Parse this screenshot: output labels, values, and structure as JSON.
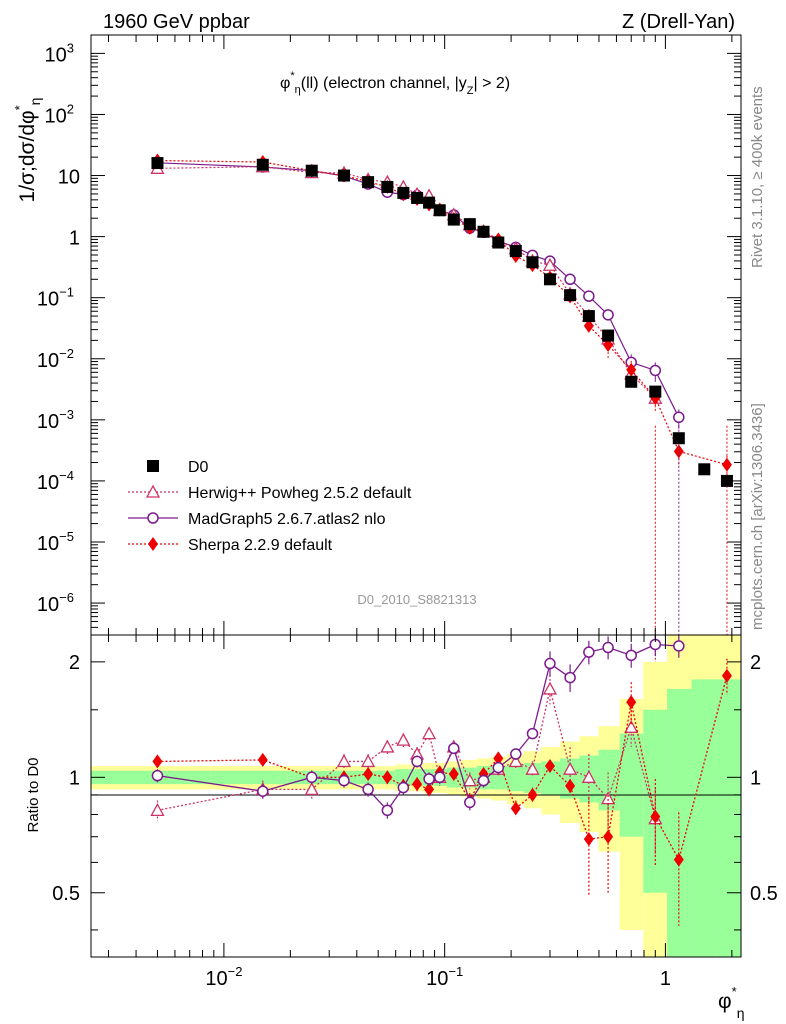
{
  "header": {
    "left": "1960 GeV ppbar",
    "right": "Z (Drell-Yan)",
    "side_top": "Rivet 3.1.10, ≥ 400k events",
    "side_bottom": "mcplots.cern.ch [arXiv:1306.3436]"
  },
  "chart_data": {
    "type": "scatter",
    "title": "φ*η(ll) (electron channel, |yZ| > 2)",
    "title_parts": {
      "phi": "φ",
      "star": "*",
      "eta": "η",
      "rest1": "(ll) (electron channel, |y",
      "sub_z": "Z",
      "rest2": "| > 2)"
    },
    "watermark": "D0_2010_S8821313",
    "xlabel": {
      "phi": "φ",
      "star": "*",
      "eta": "η"
    },
    "ylabel": {
      "main": "1/σ;dσ/dφ",
      "star": "*",
      "eta": "η"
    },
    "ratio_ylabel": "Ratio to D0",
    "xscale": "log",
    "xlim": [
      0.0025,
      2.2
    ],
    "ylim_main": [
      3e-07,
      2000
    ],
    "ylim_ratio": [
      0.34,
      2.35
    ],
    "x_ticks": [
      {
        "base": "10",
        "exp": "−2",
        "value": 0.01
      },
      {
        "base": "10",
        "exp": "−1",
        "value": 0.1
      },
      {
        "base": "1",
        "exp": "",
        "value": 1
      }
    ],
    "y_ticks": [
      {
        "base": "10",
        "exp": "3",
        "value": 1000
      },
      {
        "base": "10",
        "exp": "2",
        "value": 100
      },
      {
        "base": "10",
        "exp": "",
        "value": 10
      },
      {
        "base": "1",
        "exp": "",
        "value": 1
      },
      {
        "base": "10",
        "exp": "−1",
        "value": 0.1
      },
      {
        "base": "10",
        "exp": "−2",
        "value": 0.01
      },
      {
        "base": "10",
        "exp": "−3",
        "value": 0.001
      },
      {
        "base": "10",
        "exp": "−4",
        "value": 0.0001
      },
      {
        "base": "10",
        "exp": "−5",
        "value": 1e-05
      },
      {
        "base": "10",
        "exp": "−6",
        "value": 1e-06
      }
    ],
    "ratio_ticks": [
      {
        "label": "2",
        "value": 2
      },
      {
        "label": "1",
        "value": 1
      },
      {
        "label": "0.5",
        "value": 0.5
      }
    ],
    "legend": [
      {
        "label": "D0",
        "color": "#000000",
        "marker": "square",
        "line": "none"
      },
      {
        "label": "Herwig++ Powheg 2.5.2 default",
        "color": "#cc3366",
        "marker": "triangle-open",
        "line": "dotted"
      },
      {
        "label": "MadGraph5 2.6.7.atlas2 nlo",
        "color": "#7b1a8c",
        "marker": "circle-open",
        "line": "solid"
      },
      {
        "label": "Sherpa 2.2.9 default",
        "color": "#ee0000",
        "marker": "diamond",
        "line": "dotted"
      }
    ],
    "x": [
      0.005,
      0.015,
      0.025,
      0.035,
      0.045,
      0.055,
      0.065,
      0.075,
      0.085,
      0.095,
      0.11,
      0.13,
      0.15,
      0.175,
      0.21,
      0.25,
      0.3,
      0.37,
      0.45,
      0.55,
      0.7,
      0.9,
      1.15,
      1.5,
      1.9
    ],
    "data_values": [
      16,
      15,
      12,
      10,
      7.8,
      6.5,
      5.2,
      4.3,
      3.6,
      2.7,
      1.9,
      1.6,
      1.2,
      0.8,
      0.58,
      0.38,
      0.2,
      0.11,
      0.05,
      0.024,
      0.0042,
      0.0029,
      0.0005,
      0.000155,
      0.0001
    ],
    "data_ratio_band": {
      "green": [
        0.04,
        0.04,
        0.04,
        0.04,
        0.04,
        0.04,
        0.05,
        0.05,
        0.05,
        0.05,
        0.06,
        0.06,
        0.07,
        0.07,
        0.08,
        0.09,
        0.1,
        0.12,
        0.14,
        0.18,
        0.3,
        0.5,
        0.7,
        0.8,
        0.8
      ],
      "yellow": [
        0.07,
        0.07,
        0.07,
        0.07,
        0.07,
        0.07,
        0.08,
        0.08,
        0.09,
        0.09,
        0.1,
        0.11,
        0.12,
        0.13,
        0.15,
        0.17,
        0.2,
        0.24,
        0.28,
        0.36,
        0.6,
        1.0,
        1.5,
        1.6,
        1.6
      ]
    },
    "series": [
      {
        "name": "Herwig++ Powheg 2.5.2 default",
        "ratio": [
          0.82,
          0.93,
          0.93,
          1.1,
          1.1,
          1.2,
          1.25,
          1.15,
          1.3,
          1.0,
          1.2,
          0.98,
          1.0,
          1.05,
          1.1,
          1.05,
          1.7,
          1.05,
          1.0,
          0.88,
          1.35,
          0.78
        ]
      },
      {
        "name": "MadGraph5 2.6.7.atlas2 nlo",
        "ratio": [
          1.01,
          0.92,
          1.0,
          0.98,
          0.93,
          0.82,
          0.94,
          1.1,
          0.99,
          1.0,
          1.19,
          0.86,
          0.98,
          1.06,
          1.15,
          1.3,
          1.98,
          1.82,
          2.12,
          2.18,
          2.08,
          2.22,
          2.2
        ]
      },
      {
        "name": "Sherpa 2.2.9 default",
        "ratio": [
          1.1,
          1.11,
          1.0,
          1.0,
          1.02,
          1.0,
          0.95,
          0.96,
          0.93,
          1.03,
          1.02,
          0.87,
          1.02,
          1.12,
          0.83,
          0.9,
          1.07,
          0.95,
          0.69,
          0.7,
          1.57,
          0.79,
          0.61,
          null,
          1.84
        ]
      }
    ]
  }
}
